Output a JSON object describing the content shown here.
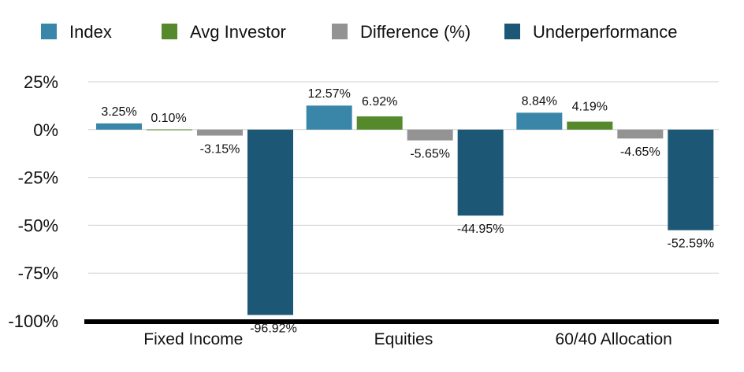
{
  "chart_data": {
    "type": "bar",
    "categories": [
      "Fixed Income",
      "Equities",
      "60/40 Allocation"
    ],
    "series": [
      {
        "name": "Index",
        "color": "#3a86a8",
        "values": [
          3.25,
          12.57,
          8.84
        ],
        "labels": [
          "3.25%",
          "12.57%",
          "8.84%"
        ]
      },
      {
        "name": "Avg Investor",
        "color": "#56892b",
        "values": [
          0.1,
          6.92,
          4.19
        ],
        "labels": [
          "0.10%",
          "6.92%",
          "4.19%"
        ]
      },
      {
        "name": "Difference (%)",
        "color": "#939393",
        "values": [
          -3.15,
          -5.65,
          -4.65
        ],
        "labels": [
          "-3.15%",
          "-5.65%",
          "-4.65%"
        ]
      },
      {
        "name": "Underperformance",
        "color": "#1c5775",
        "values": [
          -96.92,
          -44.95,
          -52.59
        ],
        "labels": [
          "-96.92%",
          "-44.95%",
          "-52.59%"
        ]
      }
    ],
    "yticks": [
      25,
      0,
      -25,
      -50,
      -75,
      -100
    ],
    "ytick_labels": [
      "25%",
      "0%",
      "-25%",
      "-50%",
      "-75%",
      "-100%"
    ],
    "ylim": [
      -100,
      25
    ],
    "grid": true,
    "legend_position": "top",
    "title": "",
    "xlabel": "",
    "ylabel": ""
  }
}
